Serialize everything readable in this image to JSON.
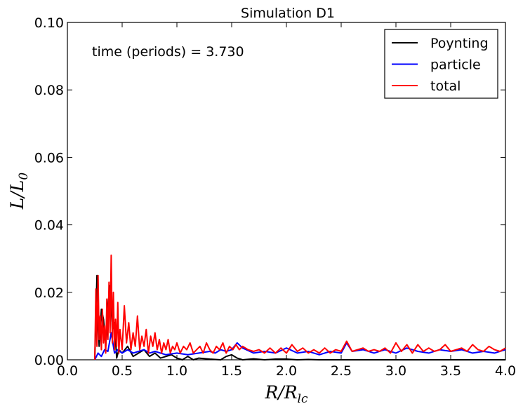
{
  "chart_data": {
    "type": "line",
    "title": "Simulation D1",
    "annotation": "time (periods) = 3.730",
    "xlabel": "R/R_lc",
    "ylabel": "L/L_0",
    "xlim": [
      0.0,
      4.0
    ],
    "ylim": [
      0.0,
      0.1
    ],
    "x_ticks": [
      "0.0",
      "0.5",
      "1.0",
      "1.5",
      "2.0",
      "2.5",
      "3.0",
      "3.5",
      "4.0"
    ],
    "y_ticks": [
      "0.00",
      "0.02",
      "0.04",
      "0.06",
      "0.08",
      "0.10"
    ],
    "legend_position": "top-right",
    "grid": false,
    "series": [
      {
        "name": "Poynting",
        "color": "#000000",
        "x": [
          0.25,
          0.27,
          0.29,
          0.31,
          0.33,
          0.35,
          0.37,
          0.39,
          0.41,
          0.43,
          0.45,
          0.47,
          0.5,
          0.55,
          0.6,
          0.65,
          0.7,
          0.75,
          0.8,
          0.85,
          0.9,
          0.95,
          1.0,
          1.05,
          1.1,
          1.15,
          1.2,
          1.3,
          1.4,
          1.45,
          1.5,
          1.55,
          1.6,
          1.7,
          1.8,
          1.9,
          2.0,
          2.1,
          2.2,
          2.3,
          2.5,
          2.75,
          3.0,
          3.5,
          4.0
        ],
        "y": [
          0.0,
          0.025,
          0.004,
          0.015,
          0.012,
          0.004,
          0.016,
          0.022,
          0.009,
          0.011,
          0.0005,
          0.003,
          0.002,
          0.004,
          0.001,
          0.002,
          0.003,
          0.001,
          0.002,
          0.0005,
          0.001,
          0.0015,
          0.0005,
          0.0,
          0.001,
          0.0,
          0.0005,
          0.0002,
          0.0,
          0.001,
          0.0015,
          0.0005,
          0.0,
          0.0003,
          0.0,
          0.0002,
          0.0002,
          0.0,
          0.0001,
          0.0,
          0.0,
          0.0,
          0.0,
          0.0,
          0.0
        ]
      },
      {
        "name": "particle",
        "color": "#0000ff",
        "x": [
          0.25,
          0.28,
          0.31,
          0.34,
          0.37,
          0.4,
          0.43,
          0.46,
          0.5,
          0.55,
          0.6,
          0.65,
          0.7,
          0.75,
          0.8,
          0.9,
          1.0,
          1.1,
          1.2,
          1.3,
          1.35,
          1.4,
          1.45,
          1.5,
          1.55,
          1.6,
          1.7,
          1.8,
          1.9,
          2.0,
          2.1,
          2.2,
          2.3,
          2.4,
          2.5,
          2.55,
          2.6,
          2.7,
          2.8,
          2.9,
          3.0,
          3.1,
          3.2,
          3.3,
          3.4,
          3.5,
          3.6,
          3.7,
          3.8,
          3.9,
          4.0
        ],
        "y": [
          0.0,
          0.002,
          0.001,
          0.003,
          0.0025,
          0.008,
          0.002,
          0.003,
          0.002,
          0.003,
          0.002,
          0.0025,
          0.003,
          0.002,
          0.0025,
          0.0015,
          0.002,
          0.0015,
          0.002,
          0.0025,
          0.002,
          0.003,
          0.0025,
          0.003,
          0.005,
          0.0035,
          0.002,
          0.0025,
          0.002,
          0.0035,
          0.002,
          0.0025,
          0.0015,
          0.0025,
          0.002,
          0.005,
          0.0025,
          0.003,
          0.002,
          0.003,
          0.002,
          0.0035,
          0.0025,
          0.002,
          0.003,
          0.0025,
          0.003,
          0.002,
          0.0025,
          0.002,
          0.003
        ]
      },
      {
        "name": "total",
        "color": "#ff0000",
        "x": [
          0.25,
          0.26,
          0.27,
          0.28,
          0.29,
          0.3,
          0.31,
          0.32,
          0.33,
          0.34,
          0.35,
          0.36,
          0.37,
          0.38,
          0.39,
          0.4,
          0.41,
          0.42,
          0.43,
          0.44,
          0.45,
          0.46,
          0.47,
          0.48,
          0.5,
          0.52,
          0.54,
          0.56,
          0.58,
          0.6,
          0.62,
          0.64,
          0.66,
          0.68,
          0.7,
          0.72,
          0.74,
          0.76,
          0.78,
          0.8,
          0.82,
          0.84,
          0.86,
          0.88,
          0.9,
          0.92,
          0.94,
          0.96,
          0.98,
          1.0,
          1.03,
          1.06,
          1.09,
          1.12,
          1.15,
          1.18,
          1.21,
          1.24,
          1.27,
          1.3,
          1.33,
          1.36,
          1.39,
          1.42,
          1.45,
          1.48,
          1.51,
          1.54,
          1.57,
          1.6,
          1.65,
          1.7,
          1.75,
          1.8,
          1.85,
          1.9,
          1.95,
          2.0,
          2.05,
          2.1,
          2.15,
          2.2,
          2.25,
          2.3,
          2.35,
          2.4,
          2.45,
          2.5,
          2.55,
          2.6,
          2.65,
          2.7,
          2.75,
          2.8,
          2.85,
          2.9,
          2.95,
          3.0,
          3.05,
          3.1,
          3.15,
          3.2,
          3.25,
          3.3,
          3.35,
          3.4,
          3.45,
          3.5,
          3.55,
          3.6,
          3.65,
          3.7,
          3.75,
          3.8,
          3.85,
          3.9,
          3.95,
          4.0
        ],
        "y": [
          0.0,
          0.021,
          0.004,
          0.025,
          0.006,
          0.013,
          0.003,
          0.015,
          0.005,
          0.01,
          0.002,
          0.018,
          0.006,
          0.023,
          0.008,
          0.031,
          0.005,
          0.02,
          0.003,
          0.012,
          0.004,
          0.017,
          0.002,
          0.009,
          0.003,
          0.016,
          0.005,
          0.011,
          0.003,
          0.008,
          0.004,
          0.013,
          0.003,
          0.007,
          0.004,
          0.009,
          0.002,
          0.007,
          0.004,
          0.008,
          0.003,
          0.006,
          0.002,
          0.005,
          0.003,
          0.006,
          0.002,
          0.004,
          0.003,
          0.005,
          0.002,
          0.004,
          0.003,
          0.005,
          0.002,
          0.003,
          0.004,
          0.002,
          0.005,
          0.003,
          0.002,
          0.004,
          0.003,
          0.005,
          0.002,
          0.004,
          0.003,
          0.0045,
          0.003,
          0.004,
          0.003,
          0.0025,
          0.003,
          0.002,
          0.0035,
          0.002,
          0.0035,
          0.002,
          0.0045,
          0.0025,
          0.0035,
          0.002,
          0.003,
          0.002,
          0.0035,
          0.002,
          0.003,
          0.0025,
          0.0055,
          0.0025,
          0.003,
          0.0035,
          0.0025,
          0.003,
          0.0025,
          0.0035,
          0.002,
          0.005,
          0.0025,
          0.0045,
          0.002,
          0.0045,
          0.0025,
          0.0035,
          0.0025,
          0.003,
          0.0045,
          0.0025,
          0.003,
          0.0035,
          0.0025,
          0.0045,
          0.003,
          0.0025,
          0.004,
          0.003,
          0.0025,
          0.0035
        ]
      }
    ]
  }
}
